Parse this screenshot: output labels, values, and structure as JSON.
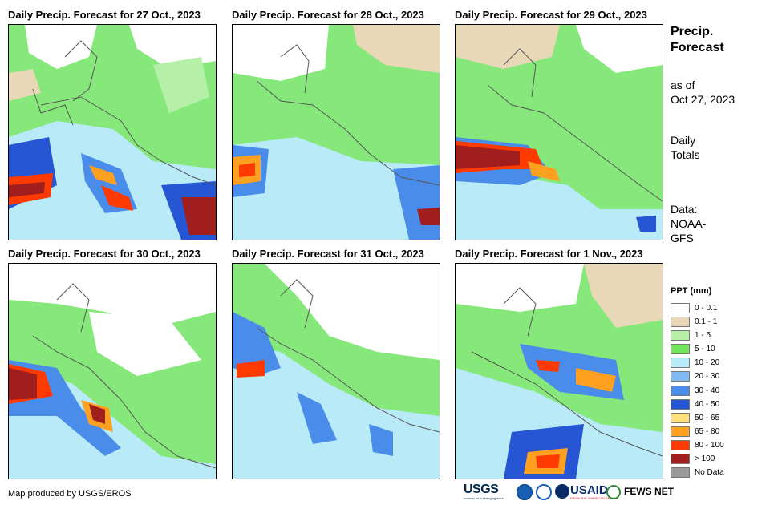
{
  "panels": [
    {
      "title": "Daily Precip. Forecast for 27 Oct., 2023"
    },
    {
      "title": "Daily Precip. Forecast for 28 Oct., 2023"
    },
    {
      "title": "Daily Precip. Forecast for 29 Oct., 2023"
    },
    {
      "title": "Daily Precip. Forecast for 30 Oct., 2023"
    },
    {
      "title": "Daily Precip. Forecast for 31 Oct., 2023"
    },
    {
      "title": "Daily Precip. Forecast for 1 Nov., 2023"
    }
  ],
  "sidebar": {
    "title_line1": "Precip.",
    "title_line2": "Forecast",
    "asof_line1": "as of",
    "asof_line2": "Oct 27, 2023",
    "totals_line1": "Daily",
    "totals_line2": "Totals",
    "data_line1": "Data:",
    "data_line2": "NOAA-",
    "data_line3": "GFS"
  },
  "legend": {
    "title": "PPT (mm)",
    "items": [
      {
        "label": "0 - 0.1",
        "color": "#ffffff"
      },
      {
        "label": "0.1 - 1",
        "color": "#e8d8b8"
      },
      {
        "label": "1 - 5",
        "color": "#b6f0a8"
      },
      {
        "label": "5 - 10",
        "color": "#72e45e"
      },
      {
        "label": "10 - 20",
        "color": "#b8eaf8"
      },
      {
        "label": "20 - 30",
        "color": "#80baf0"
      },
      {
        "label": "30 - 40",
        "color": "#4a8cea"
      },
      {
        "label": "40 - 50",
        "color": "#2656d4"
      },
      {
        "label": "50 - 65",
        "color": "#ffe080"
      },
      {
        "label": "65 - 80",
        "color": "#ffa020"
      },
      {
        "label": "80 - 100",
        "color": "#ff3a00"
      },
      {
        "label": "> 100",
        "color": "#a01e1e"
      },
      {
        "label": "No Data",
        "color": "#999999"
      }
    ]
  },
  "credit": "Map produced by USGS/EROS",
  "logos": {
    "usgs": "USGS",
    "usgs_tagline": "science for a changing world",
    "usaid": "USAID",
    "usaid_tagline": "FROM THE AMERICAN PEOPLE",
    "fewsnet": "FEWS NET"
  }
}
